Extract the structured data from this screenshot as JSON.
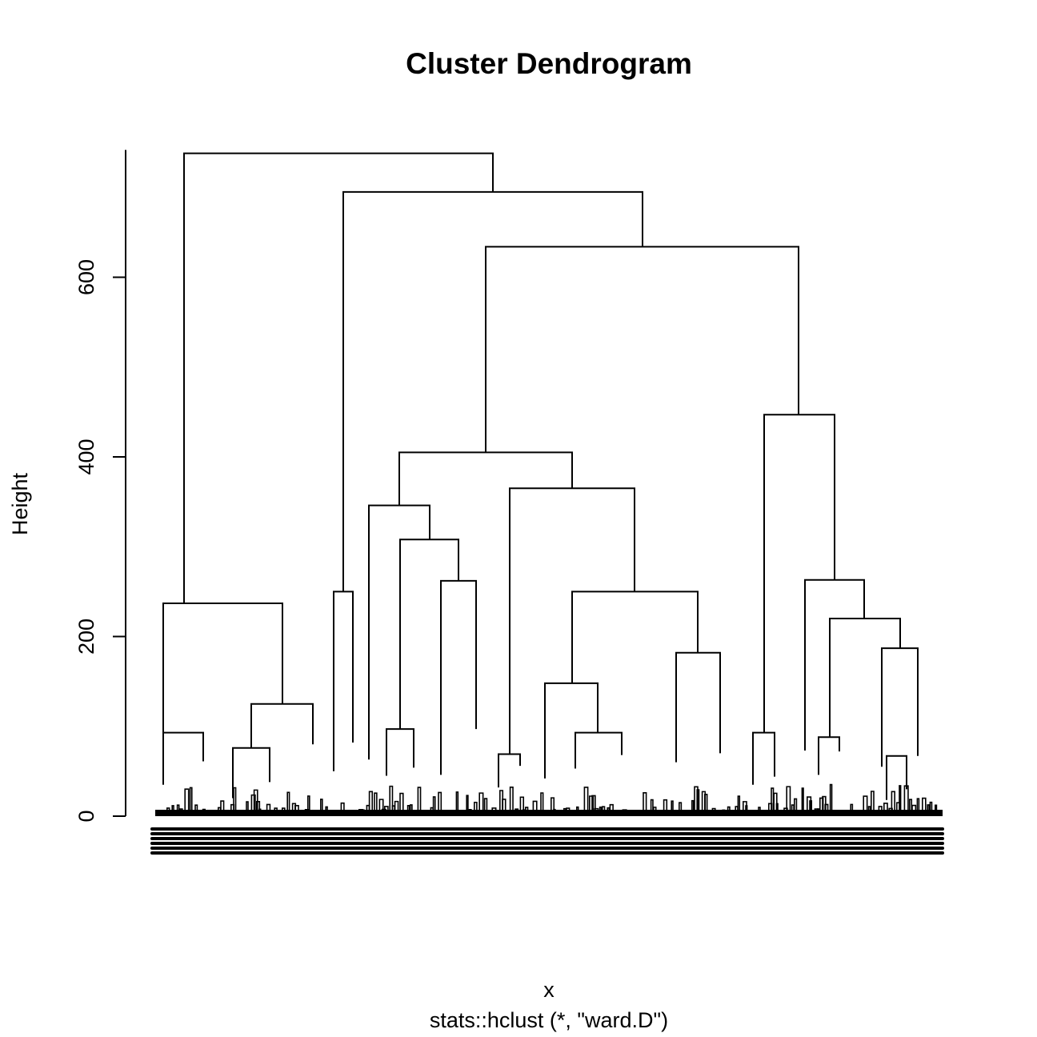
{
  "chart_data": {
    "type": "dendrogram",
    "title": "Cluster Dendrogram",
    "xlabel": "x",
    "ylabel": "Height",
    "sub": "stats::hclust (*, \"ward.D\")",
    "ylim": [
      0,
      740
    ],
    "yticks": [
      0,
      200,
      400,
      600
    ],
    "leaf_range": [
      0,
      1000
    ],
    "leaf_count_label": "",
    "merges": [
      {
        "x1": 230,
        "x2": 616,
        "h": 738,
        "l1": 237,
        "l2": 695
      },
      {
        "x1": 429,
        "x2": 803,
        "h": 695,
        "l1": 250,
        "l2": 634
      },
      {
        "x1": 607,
        "x2": 998,
        "h": 634,
        "l1": 405,
        "l2": 447
      },
      {
        "x1": 499,
        "x2": 715,
        "h": 405,
        "l1": 346,
        "l2": 365
      },
      {
        "x1": 461,
        "x2": 537,
        "h": 346,
        "l1": 63,
        "l2": 308
      },
      {
        "x1": 500,
        "x2": 573,
        "h": 308,
        "l1": 97,
        "l2": 262
      },
      {
        "x1": 551,
        "x2": 595,
        "h": 262,
        "l1": 46,
        "l2": 97
      },
      {
        "x1": 637,
        "x2": 793,
        "h": 365,
        "l1": 69,
        "l2": 250
      },
      {
        "x1": 715,
        "x2": 872,
        "h": 250,
        "l1": 148,
        "l2": 182
      },
      {
        "x1": 681,
        "x2": 747,
        "h": 148,
        "l1": 42,
        "l2": 93
      },
      {
        "x1": 719,
        "x2": 777,
        "h": 93,
        "l1": 53,
        "l2": 68
      },
      {
        "x1": 845,
        "x2": 900,
        "h": 182,
        "l1": 60,
        "l2": 70
      },
      {
        "x1": 955,
        "x2": 1043,
        "h": 447,
        "l1": 93,
        "l2": 263
      },
      {
        "x1": 1006,
        "x2": 1080,
        "h": 263,
        "l1": 73,
        "l2": 220
      },
      {
        "x1": 1037,
        "x2": 1125,
        "h": 220,
        "l1": 88,
        "l2": 187
      },
      {
        "x1": 1102,
        "x2": 1147,
        "h": 187,
        "l1": 55,
        "l2": 67
      },
      {
        "x1": 204,
        "x2": 353,
        "h": 237,
        "l1": 93,
        "l2": 125
      },
      {
        "x1": 204,
        "x2": 254,
        "h": 93,
        "l1": 35,
        "l2": 61
      },
      {
        "x1": 314,
        "x2": 391,
        "h": 125,
        "l1": 76,
        "l2": 80
      },
      {
        "x1": 291,
        "x2": 337,
        "h": 76,
        "l1": 20,
        "l2": 38
      },
      {
        "x1": 417,
        "x2": 441,
        "h": 250,
        "l1": 50,
        "l2": 82
      },
      {
        "x1": 483,
        "x2": 517,
        "h": 97,
        "l1": 45,
        "l2": 54
      },
      {
        "x1": 623,
        "x2": 650,
        "h": 69,
        "l1": 32,
        "l2": 56
      },
      {
        "x1": 941,
        "x2": 968,
        "h": 93,
        "l1": 35,
        "l2": 44
      },
      {
        "x1": 1023,
        "x2": 1049,
        "h": 88,
        "l1": 46,
        "l2": 72
      },
      {
        "x1": 1108,
        "x2": 1133,
        "h": 67,
        "l1": 18,
        "l2": 30
      }
    ]
  }
}
